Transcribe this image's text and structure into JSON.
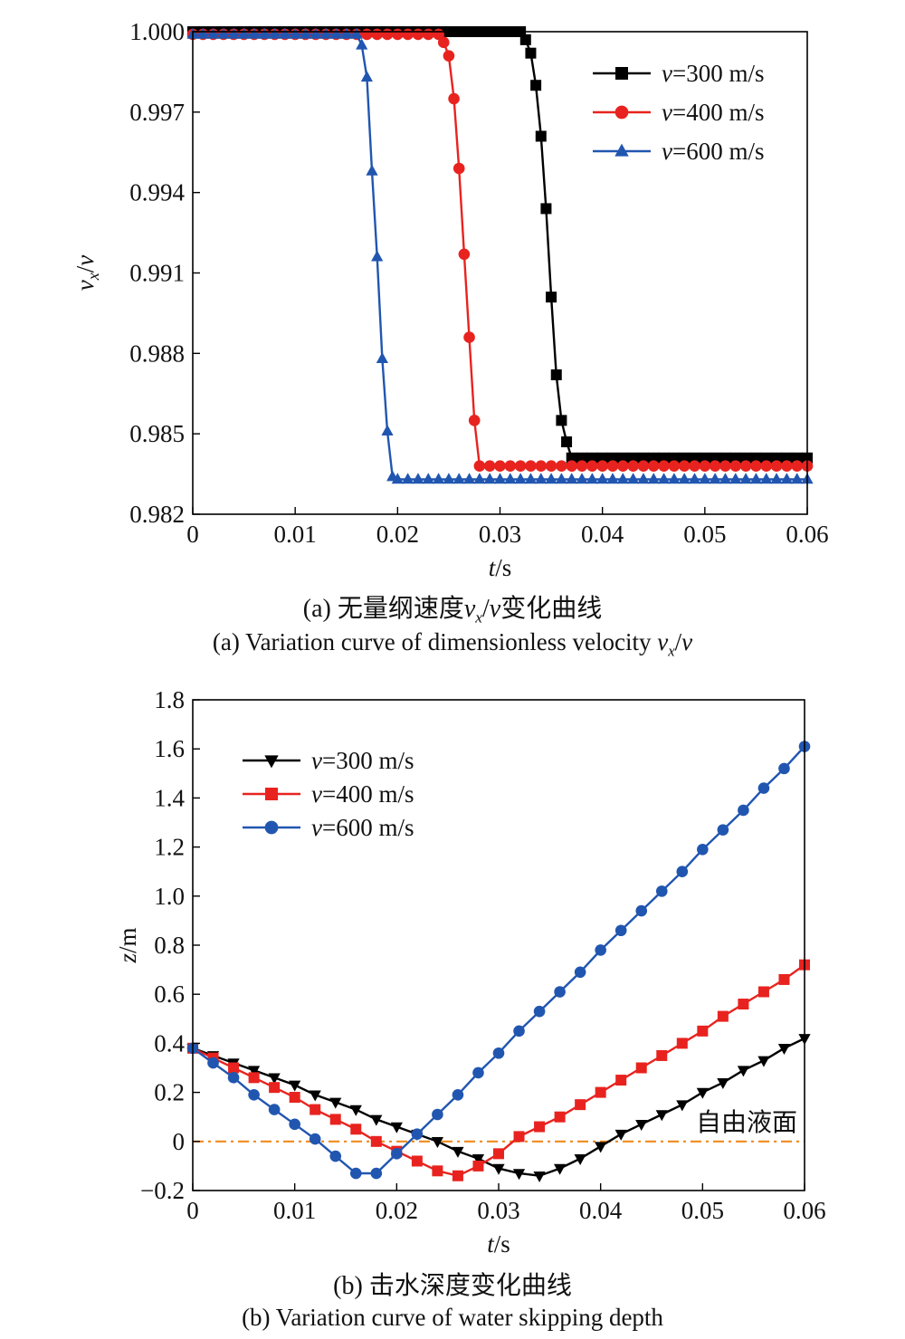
{
  "chart_data": [
    {
      "type": "line",
      "panel": "a",
      "ylabel": {
        "var": "v",
        "sub": "x",
        "rest": "/",
        "var2": "v"
      },
      "xlabel": {
        "var": "t",
        "rest": "/s"
      },
      "xlim": [
        0,
        0.06
      ],
      "ylim": [
        0.982,
        1.0
      ],
      "xticks": [
        "0",
        "0.01",
        "0.02",
        "0.03",
        "0.04",
        "0.05",
        "0.06"
      ],
      "yticks": [
        "0.982",
        "0.985",
        "0.988",
        "0.991",
        "0.994",
        "0.997",
        "1.000"
      ],
      "legend_position": "top-right",
      "series": [
        {
          "name": "v=300 m/s",
          "legend_var": "v",
          "legend_rest": "=300 m/s",
          "color": "#000000",
          "marker": "square",
          "x": [
            0,
            0.001,
            0.002,
            0.003,
            0.004,
            0.005,
            0.006,
            0.007,
            0.008,
            0.009,
            0.01,
            0.011,
            0.012,
            0.013,
            0.014,
            0.015,
            0.016,
            0.017,
            0.018,
            0.019,
            0.02,
            0.021,
            0.022,
            0.023,
            0.024,
            0.025,
            0.026,
            0.027,
            0.028,
            0.029,
            0.03,
            0.031,
            0.032,
            0.0325,
            0.033,
            0.0335,
            0.034,
            0.0345,
            0.035,
            0.0355,
            0.036,
            0.0365,
            0.037,
            0.038,
            0.039,
            0.04,
            0.041,
            0.042,
            0.043,
            0.044,
            0.045,
            0.046,
            0.047,
            0.048,
            0.049,
            0.05,
            0.051,
            0.052,
            0.053,
            0.054,
            0.055,
            0.056,
            0.057,
            0.058,
            0.059,
            0.06
          ],
          "y": [
            1.0,
            1.0,
            1.0,
            1.0,
            1.0,
            1.0,
            1.0,
            1.0,
            1.0,
            1.0,
            1.0,
            1.0,
            1.0,
            1.0,
            1.0,
            1.0,
            1.0,
            1.0,
            1.0,
            1.0,
            1.0,
            1.0,
            1.0,
            1.0,
            1.0,
            1.0,
            1.0,
            1.0,
            1.0,
            1.0,
            1.0,
            1.0,
            1.0,
            0.9997,
            0.9992,
            0.998,
            0.9961,
            0.9934,
            0.9901,
            0.9872,
            0.9855,
            0.9847,
            0.9841,
            0.9841,
            0.9841,
            0.9841,
            0.9841,
            0.9841,
            0.9841,
            0.9841,
            0.9841,
            0.9841,
            0.9841,
            0.9841,
            0.9841,
            0.9841,
            0.9841,
            0.9841,
            0.9841,
            0.9841,
            0.9841,
            0.9841,
            0.9841,
            0.9841,
            0.9841,
            0.9841
          ]
        },
        {
          "name": "v=400 m/s",
          "legend_var": "v",
          "legend_rest": "=400 m/s",
          "color": "#e8231f",
          "marker": "circle",
          "x": [
            0,
            0.001,
            0.002,
            0.003,
            0.004,
            0.005,
            0.006,
            0.007,
            0.008,
            0.009,
            0.01,
            0.011,
            0.012,
            0.013,
            0.014,
            0.015,
            0.016,
            0.017,
            0.018,
            0.019,
            0.02,
            0.021,
            0.022,
            0.023,
            0.024,
            0.0245,
            0.025,
            0.0255,
            0.026,
            0.0265,
            0.027,
            0.0275,
            0.028,
            0.029,
            0.03,
            0.031,
            0.032,
            0.033,
            0.034,
            0.035,
            0.036,
            0.037,
            0.038,
            0.039,
            0.04,
            0.041,
            0.042,
            0.043,
            0.044,
            0.045,
            0.046,
            0.047,
            0.048,
            0.049,
            0.05,
            0.051,
            0.052,
            0.053,
            0.054,
            0.055,
            0.056,
            0.057,
            0.058,
            0.059,
            0.06
          ],
          "y": [
            0.9999,
            0.9999,
            0.9999,
            0.9999,
            0.9999,
            0.9999,
            0.9999,
            0.9999,
            0.9999,
            0.9999,
            0.9999,
            0.9999,
            0.9999,
            0.9999,
            0.9999,
            0.9999,
            0.9999,
            0.9999,
            0.9999,
            0.9999,
            0.9999,
            0.9999,
            0.9999,
            0.9999,
            0.9999,
            0.9996,
            0.9991,
            0.9975,
            0.9949,
            0.9917,
            0.9886,
            0.9855,
            0.9838,
            0.9838,
            0.9838,
            0.9838,
            0.9838,
            0.9838,
            0.9838,
            0.9838,
            0.9838,
            0.9838,
            0.9838,
            0.9838,
            0.9838,
            0.9838,
            0.9838,
            0.9838,
            0.9838,
            0.9838,
            0.9838,
            0.9838,
            0.9838,
            0.9838,
            0.9838,
            0.9838,
            0.9838,
            0.9838,
            0.9838,
            0.9838,
            0.9838,
            0.9838,
            0.9838,
            0.9838,
            0.9838
          ]
        },
        {
          "name": "v=600 m/s",
          "legend_var": "v",
          "legend_rest": "=600 m/s",
          "color": "#2156b0",
          "marker": "triangle-up",
          "x": [
            0,
            0.001,
            0.002,
            0.003,
            0.004,
            0.005,
            0.006,
            0.007,
            0.008,
            0.009,
            0.01,
            0.011,
            0.012,
            0.013,
            0.014,
            0.015,
            0.016,
            0.0165,
            0.017,
            0.0175,
            0.018,
            0.0185,
            0.019,
            0.0195,
            0.02,
            0.021,
            0.022,
            0.023,
            0.024,
            0.025,
            0.026,
            0.027,
            0.028,
            0.029,
            0.03,
            0.031,
            0.032,
            0.033,
            0.034,
            0.035,
            0.036,
            0.037,
            0.038,
            0.039,
            0.04,
            0.041,
            0.042,
            0.043,
            0.044,
            0.045,
            0.046,
            0.047,
            0.048,
            0.049,
            0.05,
            0.051,
            0.052,
            0.053,
            0.054,
            0.055,
            0.056,
            0.057,
            0.058,
            0.059,
            0.06
          ],
          "y": [
            0.9999,
            0.9999,
            0.9999,
            0.9999,
            0.9999,
            0.9999,
            0.9999,
            0.9999,
            0.9999,
            0.9999,
            0.9999,
            0.9999,
            0.9999,
            0.9999,
            0.9999,
            0.9999,
            0.9999,
            0.9995,
            0.9983,
            0.9948,
            0.9916,
            0.9878,
            0.9851,
            0.9834,
            0.9833,
            0.9833,
            0.9833,
            0.9833,
            0.9833,
            0.9833,
            0.9833,
            0.9833,
            0.9833,
            0.9833,
            0.9833,
            0.9833,
            0.9833,
            0.9833,
            0.9833,
            0.9833,
            0.9833,
            0.9833,
            0.9833,
            0.9833,
            0.9833,
            0.9833,
            0.9833,
            0.9833,
            0.9833,
            0.9833,
            0.9833,
            0.9833,
            0.9833,
            0.9833,
            0.9833,
            0.9833,
            0.9833,
            0.9833,
            0.9833,
            0.9833,
            0.9833,
            0.9833,
            0.9833,
            0.9833,
            0.9833
          ]
        }
      ]
    },
    {
      "type": "line",
      "panel": "b",
      "ylabel": {
        "var": "z",
        "rest": "/m"
      },
      "xlabel": {
        "var": "t",
        "rest": "/s"
      },
      "xlim": [
        0,
        0.06
      ],
      "ylim": [
        -0.2,
        1.8
      ],
      "xticks": [
        "0",
        "0.01",
        "0.02",
        "0.03",
        "0.04",
        "0.05",
        "0.06"
      ],
      "yticks": [
        "−0.2",
        "0",
        "0.2",
        "0.4",
        "0.6",
        "0.8",
        "1.0",
        "1.2",
        "1.4",
        "1.6",
        "1.8"
      ],
      "legend_position": "top-left",
      "reference_line": {
        "y": 0,
        "label": "自由液面",
        "color": "#f08a1c",
        "style": "dash-dot"
      },
      "series": [
        {
          "name": "v=300 m/s",
          "legend_var": "v",
          "legend_rest": "=300 m/s",
          "color": "#000000",
          "marker": "triangle-down",
          "x": [
            0,
            0.002,
            0.004,
            0.006,
            0.008,
            0.01,
            0.012,
            0.014,
            0.016,
            0.018,
            0.02,
            0.022,
            0.024,
            0.026,
            0.028,
            0.03,
            0.032,
            0.034,
            0.036,
            0.038,
            0.04,
            0.042,
            0.044,
            0.046,
            0.048,
            0.05,
            0.052,
            0.054,
            0.056,
            0.058,
            0.06
          ],
          "y": [
            0.38,
            0.35,
            0.32,
            0.29,
            0.26,
            0.23,
            0.19,
            0.16,
            0.13,
            0.09,
            0.06,
            0.03,
            0.0,
            -0.04,
            -0.07,
            -0.11,
            -0.13,
            -0.14,
            -0.11,
            -0.07,
            -0.02,
            0.03,
            0.07,
            0.11,
            0.15,
            0.2,
            0.24,
            0.29,
            0.33,
            0.38,
            0.42
          ]
        },
        {
          "name": "v=400 m/s",
          "legend_var": "v",
          "legend_rest": "=400 m/s",
          "color": "#e8231f",
          "marker": "square",
          "x": [
            0,
            0.002,
            0.004,
            0.006,
            0.008,
            0.01,
            0.012,
            0.014,
            0.016,
            0.018,
            0.02,
            0.022,
            0.024,
            0.026,
            0.028,
            0.03,
            0.032,
            0.034,
            0.036,
            0.038,
            0.04,
            0.042,
            0.044,
            0.046,
            0.048,
            0.05,
            0.052,
            0.054,
            0.056,
            0.058,
            0.06
          ],
          "y": [
            0.38,
            0.34,
            0.3,
            0.26,
            0.22,
            0.18,
            0.13,
            0.09,
            0.05,
            0.0,
            -0.04,
            -0.08,
            -0.12,
            -0.14,
            -0.1,
            -0.05,
            0.02,
            0.06,
            0.1,
            0.15,
            0.2,
            0.25,
            0.3,
            0.35,
            0.4,
            0.45,
            0.51,
            0.56,
            0.61,
            0.66,
            0.72
          ]
        },
        {
          "name": "v=600 m/s",
          "legend_var": "v",
          "legend_rest": "=600 m/s",
          "color": "#2156b0",
          "marker": "circle",
          "x": [
            0,
            0.002,
            0.004,
            0.006,
            0.008,
            0.01,
            0.012,
            0.014,
            0.016,
            0.018,
            0.02,
            0.022,
            0.024,
            0.026,
            0.028,
            0.03,
            0.032,
            0.034,
            0.036,
            0.038,
            0.04,
            0.042,
            0.044,
            0.046,
            0.048,
            0.05,
            0.052,
            0.054,
            0.056,
            0.058,
            0.06
          ],
          "y": [
            0.38,
            0.32,
            0.26,
            0.19,
            0.13,
            0.07,
            0.01,
            -0.06,
            -0.13,
            -0.13,
            -0.05,
            0.03,
            0.11,
            0.19,
            0.28,
            0.36,
            0.45,
            0.53,
            0.61,
            0.69,
            0.78,
            0.86,
            0.94,
            1.02,
            1.1,
            1.19,
            1.27,
            1.35,
            1.44,
            1.52,
            1.61
          ]
        }
      ]
    }
  ],
  "captions": {
    "a_cn_prefix": "(a) 无量纲速度",
    "a_cn_var": "v",
    "a_cn_sub": "x",
    "a_cn_mid": "/",
    "a_cn_var2": "v",
    "a_cn_suffix": "变化曲线",
    "a_en_prefix": "(a) Variation curve of dimensionless velocity ",
    "a_en_var": "v",
    "a_en_sub": "x",
    "a_en_mid": "/",
    "a_en_var2": "v",
    "b_cn": "(b) 击水深度变化曲线",
    "b_en": "(b) Variation curve of water skipping depth"
  }
}
